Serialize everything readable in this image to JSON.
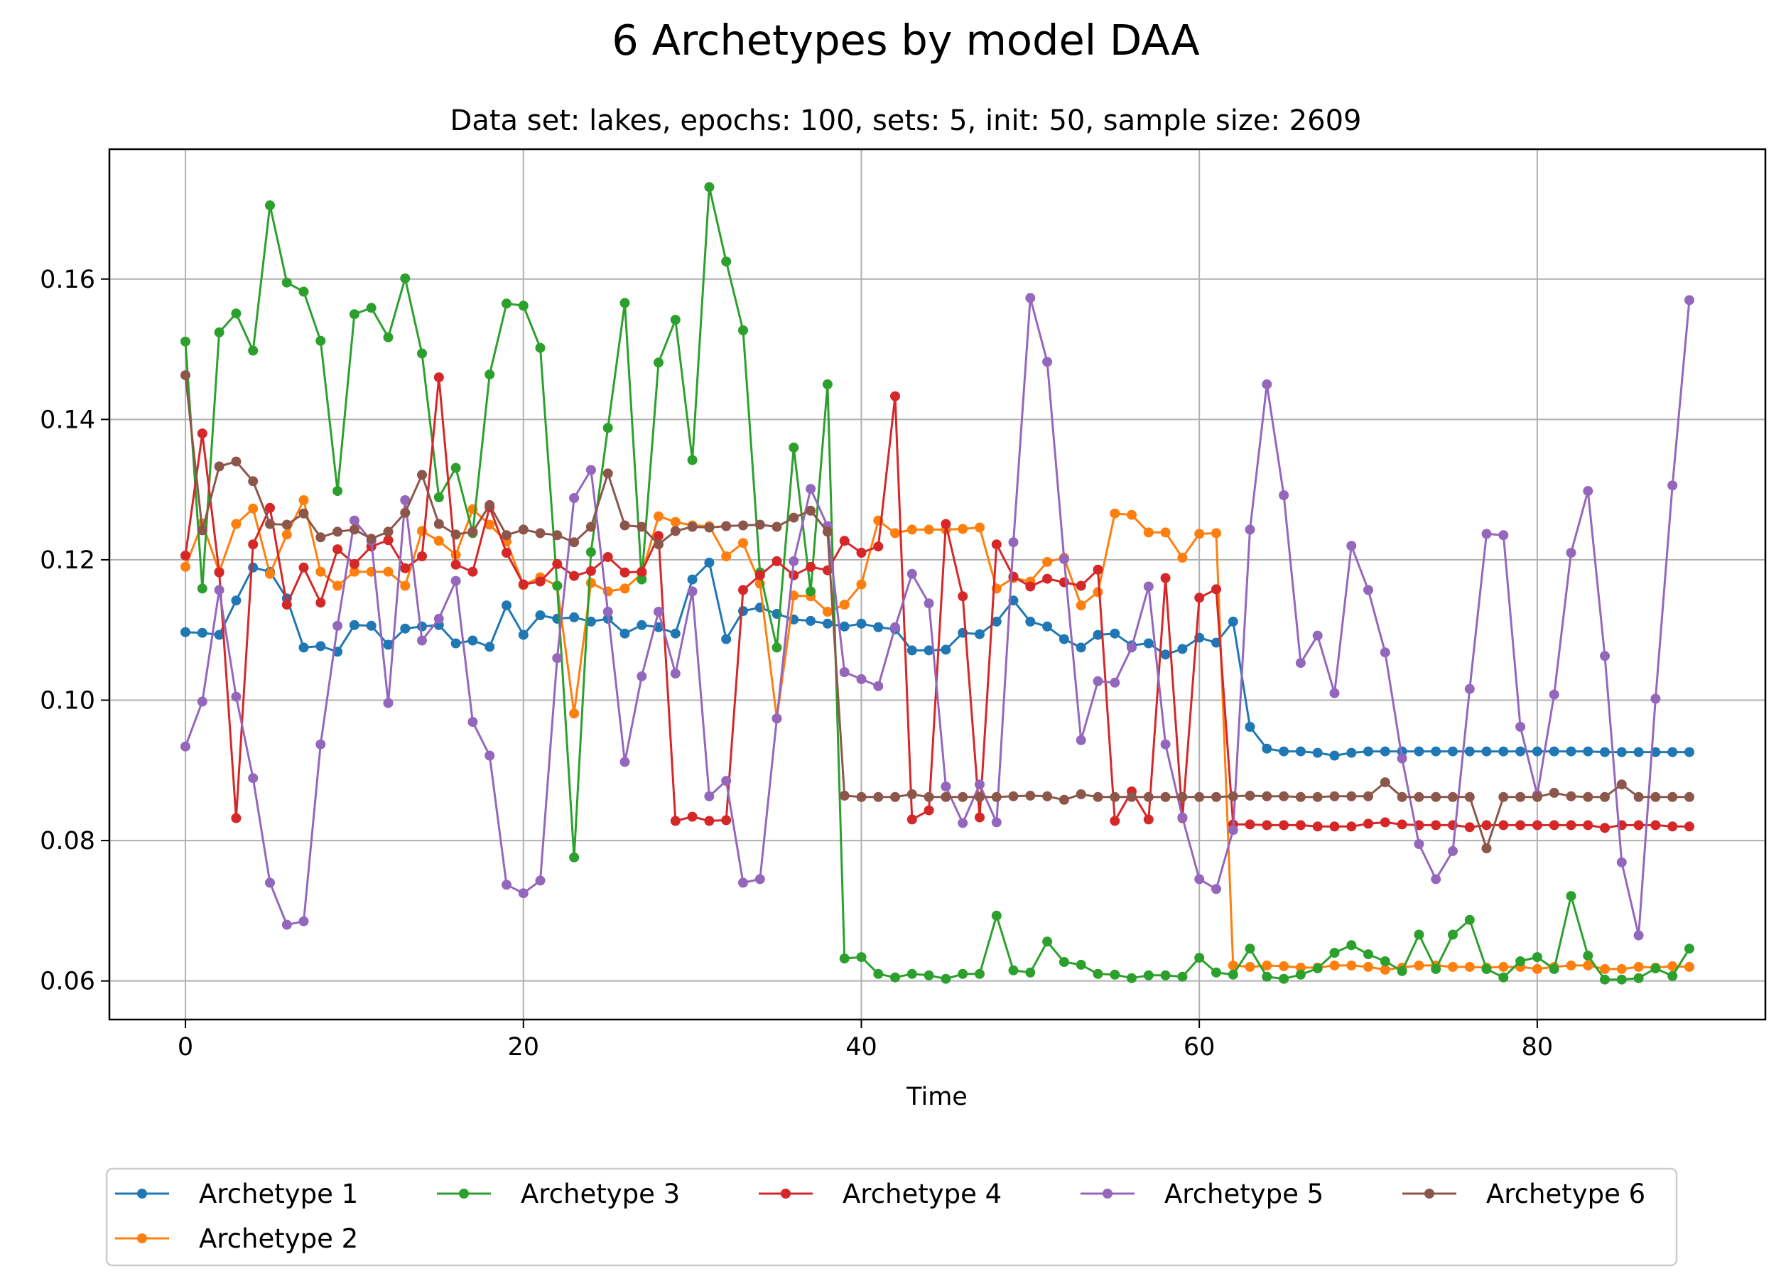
{
  "chart_data": {
    "type": "line",
    "title": "6 Archetypes by model DAA",
    "subtitle": "Data set: lakes, epochs: 100, sets: 5, init: 50, sample size: 2609",
    "xlabel": "Time",
    "ylabel": "",
    "xlim": [
      -4.5,
      93.5
    ],
    "ylim": [
      0.0545,
      0.1785
    ],
    "xticks": [
      0,
      20,
      40,
      60,
      80
    ],
    "yticks": [
      0.06,
      0.08,
      0.1,
      0.12,
      0.14,
      0.16
    ],
    "xtick_labels": [
      "0",
      "20",
      "40",
      "60",
      "80"
    ],
    "ytick_labels": [
      "0.06",
      "0.08",
      "0.10",
      "0.12",
      "0.14",
      "0.16"
    ],
    "grid": true,
    "legend_position": "bottom-center",
    "x": [
      0,
      1,
      2,
      3,
      4,
      5,
      6,
      7,
      8,
      9,
      10,
      11,
      12,
      13,
      14,
      15,
      16,
      17,
      18,
      19,
      20,
      21,
      22,
      23,
      24,
      25,
      26,
      27,
      28,
      29,
      30,
      31,
      32,
      33,
      34,
      35,
      36,
      37,
      38,
      39,
      40,
      41,
      42,
      43,
      44,
      45,
      46,
      47,
      48,
      49,
      50,
      51,
      52,
      53,
      54,
      55,
      56,
      57,
      58,
      59,
      60,
      61,
      62,
      63,
      64,
      65,
      66,
      67,
      68,
      69,
      70,
      71,
      72,
      73,
      74,
      75,
      76,
      77,
      78,
      79,
      80,
      81,
      82,
      83,
      84,
      85,
      86,
      87,
      88,
      89
    ],
    "series": [
      {
        "name": "Archetype 1",
        "color": "#1f77b4",
        "values": [
          0.1097,
          0.1096,
          0.1093,
          0.1142,
          0.1189,
          0.1183,
          0.1145,
          0.1075,
          0.1077,
          0.1069,
          0.1107,
          0.1106,
          0.1079,
          0.1102,
          0.1105,
          0.1107,
          0.1081,
          0.1085,
          0.1076,
          0.1135,
          0.1093,
          0.1121,
          0.1116,
          0.1118,
          0.1112,
          0.1116,
          0.1095,
          0.1107,
          0.1104,
          0.1095,
          0.1172,
          0.1196,
          0.1087,
          0.1127,
          0.1132,
          0.1123,
          0.1115,
          0.1113,
          0.1109,
          0.1105,
          0.1109,
          0.1104,
          0.1101,
          0.1071,
          0.1071,
          0.1072,
          0.1096,
          0.1094,
          0.1112,
          0.1142,
          0.1112,
          0.1105,
          0.1087,
          0.1075,
          0.1093,
          0.1095,
          0.1078,
          0.1081,
          0.1065,
          0.1073,
          0.1089,
          0.1082,
          0.1112,
          0.0962,
          0.0931,
          0.0927,
          0.0927,
          0.0925,
          0.0921,
          0.0925,
          0.0927,
          0.0927,
          0.0927,
          0.0927,
          0.0927,
          0.0927,
          0.0927,
          0.0927,
          0.0927,
          0.0927,
          0.0927,
          0.0927,
          0.0927,
          0.0927,
          0.0926,
          0.0926,
          0.0926,
          0.0926,
          0.0926,
          0.0926
        ]
      },
      {
        "name": "Archetype 2",
        "color": "#ff7f0e",
        "values": [
          0.119,
          0.1252,
          0.1183,
          0.1251,
          0.1273,
          0.118,
          0.1236,
          0.1285,
          0.1183,
          0.1163,
          0.1183,
          0.1183,
          0.1183,
          0.1163,
          0.1241,
          0.1227,
          0.1207,
          0.1272,
          0.125,
          0.1226,
          0.1164,
          0.1175,
          0.1163,
          0.0981,
          0.1167,
          0.1155,
          0.1159,
          0.118,
          0.1262,
          0.1254,
          0.1249,
          0.1248,
          0.1205,
          0.1224,
          0.1166,
          0.0974,
          0.1149,
          0.1148,
          0.1126,
          0.1136,
          0.1165,
          0.1256,
          0.1238,
          0.1243,
          0.1243,
          0.1243,
          0.1244,
          0.1246,
          0.1159,
          0.1174,
          0.1169,
          0.1197,
          0.1203,
          0.1135,
          0.1154,
          0.1266,
          0.1264,
          0.1239,
          0.1239,
          0.1203,
          0.1237,
          0.1238,
          0.0622,
          0.062,
          0.0622,
          0.0621,
          0.0619,
          0.0619,
          0.0622,
          0.0622,
          0.062,
          0.0616,
          0.0619,
          0.0622,
          0.0622,
          0.062,
          0.062,
          0.0619,
          0.062,
          0.062,
          0.0617,
          0.062,
          0.0622,
          0.0622,
          0.0617,
          0.0617,
          0.062,
          0.0619,
          0.0621,
          0.062
        ]
      },
      {
        "name": "Archetype 3",
        "color": "#2ca02c",
        "values": [
          0.1511,
          0.1159,
          0.1524,
          0.1551,
          0.1498,
          0.1705,
          0.1595,
          0.1582,
          0.1512,
          0.1298,
          0.155,
          0.1559,
          0.1517,
          0.1601,
          0.1494,
          0.1289,
          0.1331,
          0.1238,
          0.1464,
          0.1565,
          0.1562,
          0.1502,
          0.1163,
          0.0776,
          0.1211,
          0.1388,
          0.1566,
          0.1172,
          0.1481,
          0.1542,
          0.1342,
          0.1731,
          0.1625,
          0.1527,
          0.1182,
          0.1075,
          0.136,
          0.1155,
          0.145,
          0.0632,
          0.0634,
          0.061,
          0.0605,
          0.061,
          0.0608,
          0.0603,
          0.061,
          0.061,
          0.0693,
          0.0615,
          0.0612,
          0.0656,
          0.0627,
          0.0623,
          0.061,
          0.0609,
          0.0604,
          0.0608,
          0.0608,
          0.0606,
          0.0633,
          0.0612,
          0.0609,
          0.0646,
          0.0606,
          0.0603,
          0.0609,
          0.0618,
          0.064,
          0.0651,
          0.0638,
          0.0628,
          0.0614,
          0.0666,
          0.0617,
          0.0666,
          0.0687,
          0.0617,
          0.0605,
          0.0628,
          0.0634,
          0.0617,
          0.0721,
          0.0636,
          0.0602,
          0.0602,
          0.0604,
          0.0618,
          0.0607,
          0.0646
        ]
      },
      {
        "name": "Archetype 4",
        "color": "#d62728",
        "values": [
          0.1206,
          0.138,
          0.1182,
          0.0832,
          0.1222,
          0.1274,
          0.1136,
          0.1189,
          0.1139,
          0.1215,
          0.1194,
          0.1219,
          0.1228,
          0.1188,
          0.1205,
          0.146,
          0.1193,
          0.1183,
          0.1275,
          0.121,
          0.1165,
          0.1169,
          0.1194,
          0.1177,
          0.1184,
          0.1204,
          0.1182,
          0.1183,
          0.1234,
          0.0828,
          0.0834,
          0.0828,
          0.0829,
          0.1157,
          0.1178,
          0.1198,
          0.1178,
          0.119,
          0.1185,
          0.1227,
          0.121,
          0.1219,
          0.1433,
          0.083,
          0.0843,
          0.1251,
          0.1148,
          0.0833,
          0.1222,
          0.1176,
          0.1162,
          0.1173,
          0.1168,
          0.1163,
          0.1186,
          0.0828,
          0.087,
          0.083,
          0.1174,
          0.0832,
          0.1146,
          0.1158,
          0.0823,
          0.0823,
          0.0822,
          0.0822,
          0.0822,
          0.082,
          0.082,
          0.082,
          0.0824,
          0.0826,
          0.0823,
          0.0822,
          0.0822,
          0.0822,
          0.0819,
          0.0822,
          0.0822,
          0.0822,
          0.0822,
          0.0822,
          0.0822,
          0.0822,
          0.0818,
          0.0822,
          0.0822,
          0.0822,
          0.082,
          0.082
        ]
      },
      {
        "name": "Archetype 5",
        "color": "#9467bd",
        "values": [
          0.0934,
          0.0998,
          0.1157,
          0.1005,
          0.0889,
          0.074,
          0.068,
          0.0685,
          0.0937,
          0.1106,
          0.1256,
          0.1227,
          0.0996,
          0.1285,
          0.1085,
          0.1116,
          0.117,
          0.0969,
          0.0921,
          0.0737,
          0.0725,
          0.0743,
          0.106,
          0.1288,
          0.1328,
          0.1126,
          0.0912,
          0.1034,
          0.1126,
          0.1038,
          0.1155,
          0.0863,
          0.0885,
          0.074,
          0.0745,
          0.0974,
          0.1198,
          0.1301,
          0.1248,
          0.104,
          0.103,
          0.102,
          0.1104,
          0.118,
          0.1138,
          0.0877,
          0.0825,
          0.088,
          0.0826,
          0.1225,
          0.1573,
          0.1482,
          0.1201,
          0.0943,
          0.1027,
          0.1025,
          0.1075,
          0.1162,
          0.0937,
          0.0833,
          0.0745,
          0.0731,
          0.0815,
          0.1243,
          0.145,
          0.1292,
          0.1053,
          0.1092,
          0.101,
          0.122,
          0.1157,
          0.1068,
          0.0917,
          0.0795,
          0.0745,
          0.0785,
          0.1016,
          0.1237,
          0.1235,
          0.0962,
          0.0865,
          0.1008,
          0.121,
          0.1298,
          0.1063,
          0.0769,
          0.0665,
          0.1002,
          0.1306,
          0.157
        ]
      },
      {
        "name": "Archetype 6",
        "color": "#8c564b",
        "values": [
          0.1463,
          0.1242,
          0.1333,
          0.134,
          0.1312,
          0.1251,
          0.125,
          0.1266,
          0.1232,
          0.124,
          0.1243,
          0.123,
          0.124,
          0.1267,
          0.1321,
          0.1251,
          0.1236,
          0.124,
          0.1278,
          0.1235,
          0.1243,
          0.1238,
          0.1235,
          0.1225,
          0.1247,
          0.1323,
          0.1249,
          0.1247,
          0.1222,
          0.1241,
          0.1247,
          0.1246,
          0.1248,
          0.1249,
          0.125,
          0.1247,
          0.126,
          0.127,
          0.124,
          0.0864,
          0.0862,
          0.0862,
          0.0862,
          0.0866,
          0.0862,
          0.0862,
          0.0862,
          0.0862,
          0.0862,
          0.0863,
          0.0864,
          0.0863,
          0.0858,
          0.0866,
          0.0862,
          0.0862,
          0.0862,
          0.0862,
          0.0862,
          0.0862,
          0.0862,
          0.0862,
          0.0863,
          0.0864,
          0.0863,
          0.0863,
          0.0862,
          0.0862,
          0.0863,
          0.0863,
          0.0863,
          0.0883,
          0.0862,
          0.0862,
          0.0862,
          0.0862,
          0.0862,
          0.0789,
          0.0862,
          0.0862,
          0.0862,
          0.0868,
          0.0863,
          0.0862,
          0.0862,
          0.088,
          0.0862,
          0.0862,
          0.0862,
          0.0862
        ]
      }
    ]
  }
}
